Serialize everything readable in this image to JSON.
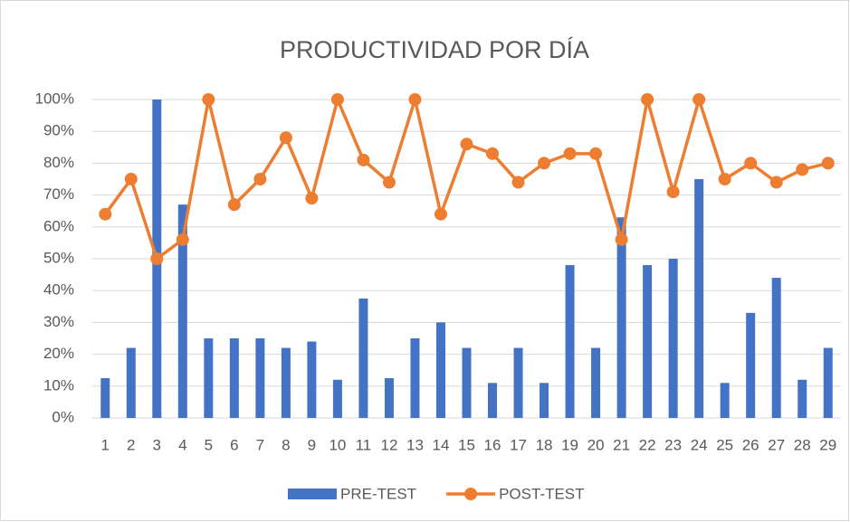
{
  "chart_data": {
    "type": "bar-line",
    "title": "PRODUCTIVIDAD POR DÍA",
    "categories": [
      "1",
      "2",
      "3",
      "4",
      "5",
      "6",
      "7",
      "8",
      "9",
      "10",
      "11",
      "12",
      "13",
      "14",
      "15",
      "16",
      "17",
      "18",
      "19",
      "20",
      "21",
      "22",
      "23",
      "24",
      "25",
      "26",
      "27",
      "28",
      "29"
    ],
    "series": [
      {
        "name": "PRE-TEST",
        "type": "bar",
        "color": "#4472c4",
        "values": [
          12.5,
          22,
          100,
          67,
          25,
          25,
          25,
          22,
          24,
          12,
          37.5,
          12.5,
          25,
          30,
          22,
          11,
          22,
          11,
          48,
          22,
          63,
          48,
          50,
          75,
          11,
          33,
          44,
          12,
          22
        ]
      },
      {
        "name": "POST-TEST",
        "type": "line",
        "color": "#ed7d31",
        "values": [
          64,
          75,
          50,
          56,
          100,
          67,
          75,
          88,
          69,
          100,
          81,
          74,
          100,
          64,
          86,
          83,
          74,
          80,
          83,
          83,
          56,
          100,
          71,
          100,
          75,
          80,
          74,
          78,
          80
        ]
      }
    ],
    "ylim": [
      0,
      100
    ],
    "yticks": [
      {
        "value": 0,
        "label": "0%"
      },
      {
        "value": 10,
        "label": "10%"
      },
      {
        "value": 20,
        "label": "20%"
      },
      {
        "value": 30,
        "label": "30%"
      },
      {
        "value": 40,
        "label": "40%"
      },
      {
        "value": 50,
        "label": "50%"
      },
      {
        "value": 60,
        "label": "60%"
      },
      {
        "value": 70,
        "label": "70%"
      },
      {
        "value": 80,
        "label": "80%"
      },
      {
        "value": 90,
        "label": "90%"
      },
      {
        "value": 100,
        "label": "100%"
      }
    ],
    "grid": true,
    "legend": "bottom"
  }
}
